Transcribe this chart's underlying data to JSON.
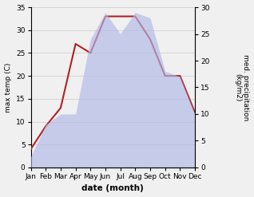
{
  "months": [
    "Jan",
    "Feb",
    "Mar",
    "Apr",
    "May",
    "Jun",
    "Jul",
    "Aug",
    "Sep",
    "Oct",
    "Nov",
    "Dec"
  ],
  "temperature": [
    4,
    9,
    13,
    27,
    25,
    33,
    33,
    33,
    28,
    20,
    20,
    12
  ],
  "precipitation": [
    2,
    8,
    10,
    10,
    24,
    29,
    25,
    29,
    28,
    18,
    17,
    10
  ],
  "temp_ylim": [
    0,
    35
  ],
  "precip_ylim": [
    0,
    30
  ],
  "temp_color": "#b22222",
  "precip_fill_color": "#b0b8e8",
  "precip_fill_alpha": 0.65,
  "xlabel": "date (month)",
  "ylabel_left": "max temp (C)",
  "ylabel_right": "med. precipitation\n(kg/m2)",
  "temp_yticks": [
    0,
    5,
    10,
    15,
    20,
    25,
    30,
    35
  ],
  "precip_yticks": [
    0,
    5,
    10,
    15,
    20,
    25,
    30
  ],
  "figsize": [
    3.18,
    2.47
  ],
  "dpi": 100,
  "bg_color": "#f0f0f0"
}
